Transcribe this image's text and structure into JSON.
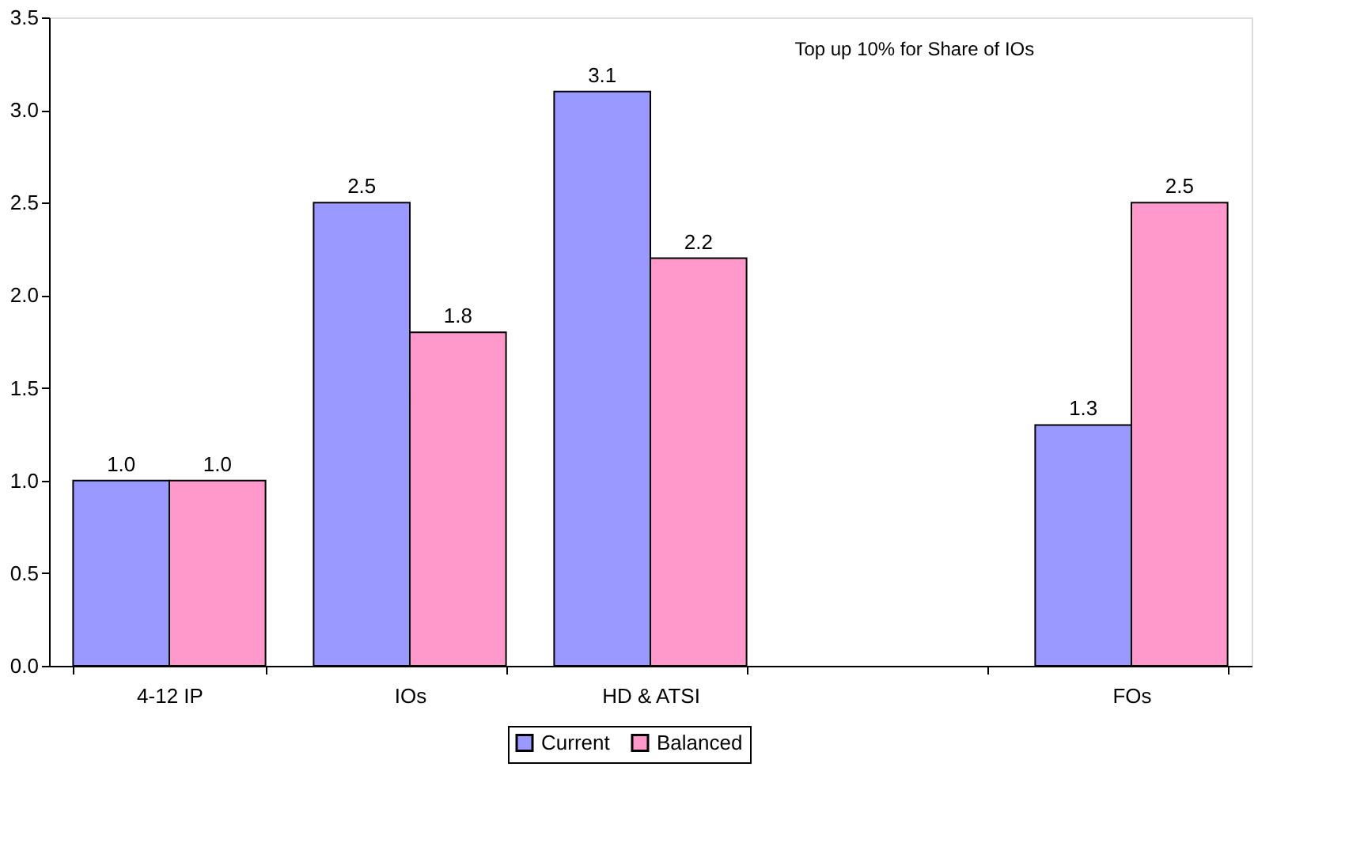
{
  "chart_data": {
    "type": "bar",
    "categories": [
      "4-12 IP",
      "IOs",
      "HD & ATSI",
      null,
      "FOs"
    ],
    "series": [
      {
        "name": "Current",
        "color": "#9999ff",
        "values": [
          1.0,
          2.5,
          3.1,
          null,
          1.3
        ],
        "value_labels": [
          "1.0",
          "2.5",
          "3.1",
          null,
          "1.3"
        ]
      },
      {
        "name": "Balanced",
        "color": "#ff99cc",
        "values": [
          1.0,
          1.8,
          2.2,
          null,
          2.5
        ],
        "value_labels": [
          "1.0",
          "1.8",
          "2.2",
          null,
          "2.5"
        ]
      }
    ],
    "ylim": [
      0,
      3.5
    ],
    "yticks": [
      "0.0",
      "0.5",
      "1.0",
      "1.5",
      "2.0",
      "2.5",
      "3.0",
      "3.5"
    ],
    "grid": false,
    "legend": "bottom",
    "annotations": [
      "Top up 10% for Share of IOs"
    ]
  }
}
